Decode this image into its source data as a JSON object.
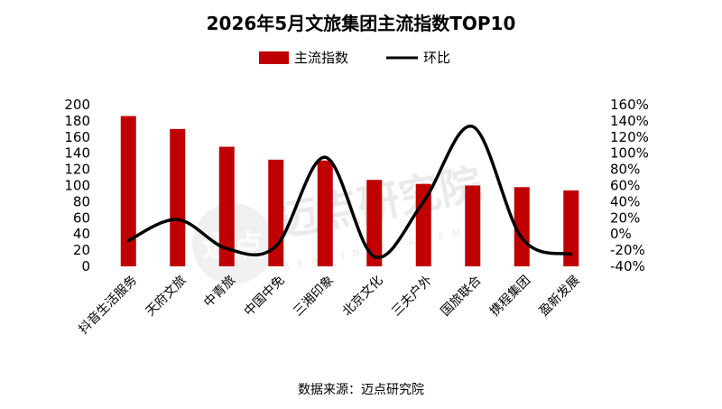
{
  "chart_data": {
    "type": "bar",
    "title": "2026年5月文旅集团主流指数TOP10",
    "categories": [
      "抖音生活服务",
      "天府文旅",
      "中青旅",
      "中国中免",
      "三湘印象",
      "北京文化",
      "三夫户外",
      "国旅联合",
      "携程集团",
      "盈新发展"
    ],
    "series": [
      {
        "name": "主流指数",
        "kind": "bar",
        "axis": "left",
        "values": [
          186,
          170,
          148,
          132,
          131,
          107,
          102,
          100,
          98,
          94
        ]
      },
      {
        "name": "环比",
        "kind": "line",
        "axis": "right",
        "unit": "%",
        "values": [
          -8,
          18,
          -18,
          -15,
          95,
          -28,
          40,
          133,
          -5,
          -25
        ]
      }
    ],
    "left_axis": {
      "min": 0,
      "max": 200,
      "step": 20,
      "tick_labels": [
        "0",
        "20",
        "40",
        "60",
        "80",
        "100",
        "120",
        "140",
        "160",
        "180",
        "200"
      ]
    },
    "right_axis": {
      "min": -40,
      "max": 160,
      "step": 20,
      "tick_labels": [
        "-40%",
        "-20%",
        "0%",
        "20%",
        "40%",
        "60%",
        "80%",
        "100%",
        "120%",
        "140%",
        "160%"
      ]
    },
    "legend_position": "top",
    "grid": false,
    "colors": {
      "bar": "#C00000",
      "line": "#000000"
    }
  },
  "source_text": "数据来源：迈点研究院",
  "watermark": {
    "text": "迈点研究院",
    "sub": "MEADIN ACADEMY",
    "logo_text": "迈点"
  }
}
